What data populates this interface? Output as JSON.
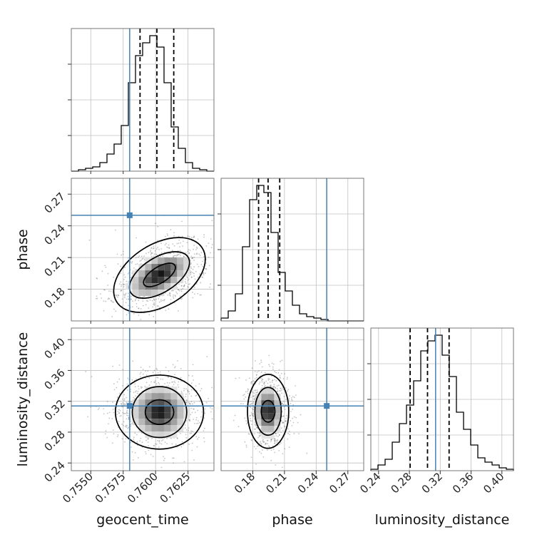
{
  "chart_data": {
    "type": "corner",
    "parameters": [
      "geocent_time",
      "phase",
      "luminosity_distance"
    ],
    "axis_labels": {
      "x": [
        "geocent_time",
        "phase",
        "luminosity_distance"
      ],
      "y": [
        "",
        "phase",
        "luminosity_distance"
      ]
    },
    "colors": {
      "truth": "#4682b4",
      "hist": "#000000",
      "grid": "#c0c0c0",
      "samples": "#555555"
    },
    "ranges": {
      "geocent_time": [
        0.7535,
        0.7645
      ],
      "phase": [
        0.15,
        0.285
      ],
      "luminosity_distance": [
        0.23,
        0.415
      ]
    },
    "ticks": {
      "geocent_time": {
        "values": [
          0.755,
          0.7575,
          0.76,
          0.7625
        ],
        "labels": [
          "0.7550",
          "0.7575",
          "0.7600",
          "0.7625"
        ]
      },
      "phase": {
        "values": [
          0.18,
          0.21,
          0.24,
          0.27
        ],
        "labels": [
          "0.18",
          "0.21",
          "0.24",
          "0.27"
        ]
      },
      "luminosity_distance": {
        "values": [
          0.24,
          0.28,
          0.32,
          0.36,
          0.4
        ],
        "labels": [
          "0.24",
          "0.28",
          "0.32",
          "0.36",
          "0.40"
        ]
      }
    },
    "truths": {
      "geocent_time": 0.758,
      "phase": 0.25,
      "luminosity_distance": 0.314
    },
    "quantiles": {
      "geocent_time": [
        0.7588,
        0.7601,
        0.7614
      ],
      "phase": [
        0.1855,
        0.1945,
        0.2055
      ],
      "luminosity_distance": [
        0.281,
        0.3035,
        0.3315
      ]
    },
    "histograms": {
      "geocent_time": [
        0,
        0.01,
        0.02,
        0.03,
        0.06,
        0.12,
        0.19,
        0.32,
        0.62,
        0.81,
        0.9,
        0.95,
        0.87,
        0.62,
        0.31,
        0.16,
        0.06,
        0.02,
        0.01,
        0
      ],
      "phase": [
        0.02,
        0.07,
        0.19,
        0.52,
        0.85,
        0.95,
        0.9,
        0.62,
        0.34,
        0.21,
        0.11,
        0.05,
        0.03,
        0.02,
        0.01,
        0,
        0,
        0,
        0,
        0
      ],
      "luminosity_distance": [
        0.01,
        0.04,
        0.08,
        0.2,
        0.33,
        0.46,
        0.63,
        0.84,
        0.91,
        0.95,
        0.81,
        0.66,
        0.41,
        0.29,
        0.18,
        0.09,
        0.06,
        0.04,
        0.02,
        0.01
      ]
    },
    "contours": [
      {
        "x": "geocent_time",
        "y": "phase",
        "center": [
          0.7603,
          0.1935
        ],
        "radii_x": [
          0.0014,
          0.0026,
          0.0039
        ],
        "radii_y": [
          0.0075,
          0.0165,
          0.029
        ],
        "correlation": 0.6
      },
      {
        "x": "geocent_time",
        "y": "luminosity_distance",
        "center": [
          0.7603,
          0.306
        ],
        "radii_x": [
          0.0011,
          0.0021,
          0.0034
        ],
        "radii_y": [
          0.016,
          0.033,
          0.048
        ],
        "correlation": 0.0
      },
      {
        "x": "phase",
        "y": "luminosity_distance",
        "center": [
          0.1945,
          0.307
        ],
        "radii_x": [
          0.0065,
          0.0125,
          0.0195
        ],
        "radii_y": [
          0.014,
          0.031,
          0.048
        ],
        "correlation": 0.0
      }
    ]
  }
}
